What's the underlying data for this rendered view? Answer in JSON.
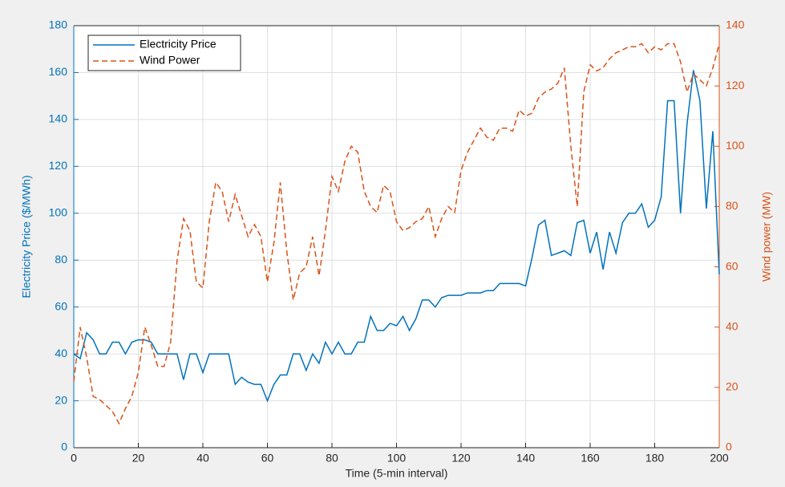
{
  "chart_data": {
    "type": "line",
    "xlabel": "Time (5-min interval)",
    "ylabel": "Electricity Price ($/MWh)",
    "y2label": "Wind power (MW)",
    "x": [
      0,
      2,
      4,
      6,
      8,
      10,
      12,
      14,
      16,
      18,
      20,
      22,
      24,
      26,
      28,
      30,
      32,
      34,
      36,
      38,
      40,
      42,
      44,
      46,
      48,
      50,
      52,
      54,
      56,
      58,
      60,
      62,
      64,
      66,
      68,
      70,
      72,
      74,
      76,
      78,
      80,
      82,
      84,
      86,
      88,
      90,
      92,
      94,
      96,
      98,
      100,
      102,
      104,
      106,
      108,
      110,
      112,
      114,
      116,
      118,
      120,
      122,
      124,
      126,
      128,
      130,
      132,
      134,
      136,
      138,
      140,
      142,
      144,
      146,
      148,
      150,
      152,
      154,
      156,
      158,
      160,
      162,
      164,
      166,
      168,
      170,
      172,
      174,
      176,
      178,
      180,
      182,
      184,
      186,
      188,
      190,
      192,
      194,
      196,
      198,
      200
    ],
    "series": [
      {
        "name": "Electricity Price",
        "color": "#0072bd",
        "axis": "y",
        "dashed": false,
        "values": [
          40,
          38,
          49,
          46,
          40,
          40,
          45,
          45,
          40,
          45,
          46,
          46,
          45,
          40,
          40,
          40,
          40,
          29,
          40,
          40,
          32,
          40,
          40,
          40,
          40,
          27,
          30,
          28,
          27,
          27,
          20,
          27,
          31,
          31,
          40,
          40,
          33,
          40,
          36,
          45,
          40,
          45,
          40,
          40,
          45,
          45,
          56,
          50,
          50,
          53,
          52,
          56,
          50,
          55,
          63,
          63,
          60,
          64,
          65,
          65,
          65,
          66,
          66,
          66,
          67,
          67,
          70,
          70,
          70,
          70,
          69,
          81,
          95,
          97,
          82,
          83,
          84,
          82,
          96,
          97,
          83,
          92,
          76,
          92,
          83,
          96,
          100,
          100,
          104,
          94,
          97,
          107,
          148,
          148,
          100,
          138,
          161,
          148,
          102,
          135,
          74
        ]
      },
      {
        "name": "Wind Power",
        "color": "#d95319",
        "axis": "y2",
        "dashed": true,
        "values": [
          22,
          40,
          30,
          17,
          16,
          14,
          12,
          8,
          13,
          17,
          25,
          40,
          34,
          27,
          27,
          35,
          62,
          76,
          72,
          55,
          53,
          75,
          88,
          85,
          75,
          84,
          77,
          70,
          74,
          70,
          55,
          68,
          88,
          65,
          49,
          58,
          60,
          70,
          57,
          72,
          90,
          85,
          95,
          100,
          98,
          85,
          80,
          78,
          87,
          85,
          75,
          72,
          73,
          75,
          76,
          80,
          70,
          76,
          80,
          78,
          92,
          98,
          102,
          106,
          103,
          102,
          106,
          106,
          105,
          112,
          110,
          111,
          116,
          118,
          119,
          121,
          126,
          100,
          80,
          118,
          127,
          125,
          126,
          129,
          131,
          132,
          133,
          133,
          134,
          131,
          133,
          132,
          134,
          134,
          128,
          118,
          124,
          122,
          120,
          126,
          134
        ]
      }
    ],
    "xlim": [
      0,
      200
    ],
    "xticks": [
      0,
      20,
      40,
      60,
      80,
      100,
      120,
      140,
      160,
      180,
      200
    ],
    "ylim": [
      0,
      180
    ],
    "yticks": [
      0,
      20,
      40,
      60,
      80,
      100,
      120,
      140,
      160,
      180
    ],
    "y2lim": [
      0,
      140
    ],
    "y2ticks": [
      0,
      20,
      40,
      60,
      80,
      100,
      120,
      140
    ],
    "grid": true,
    "legend": "top-left"
  }
}
